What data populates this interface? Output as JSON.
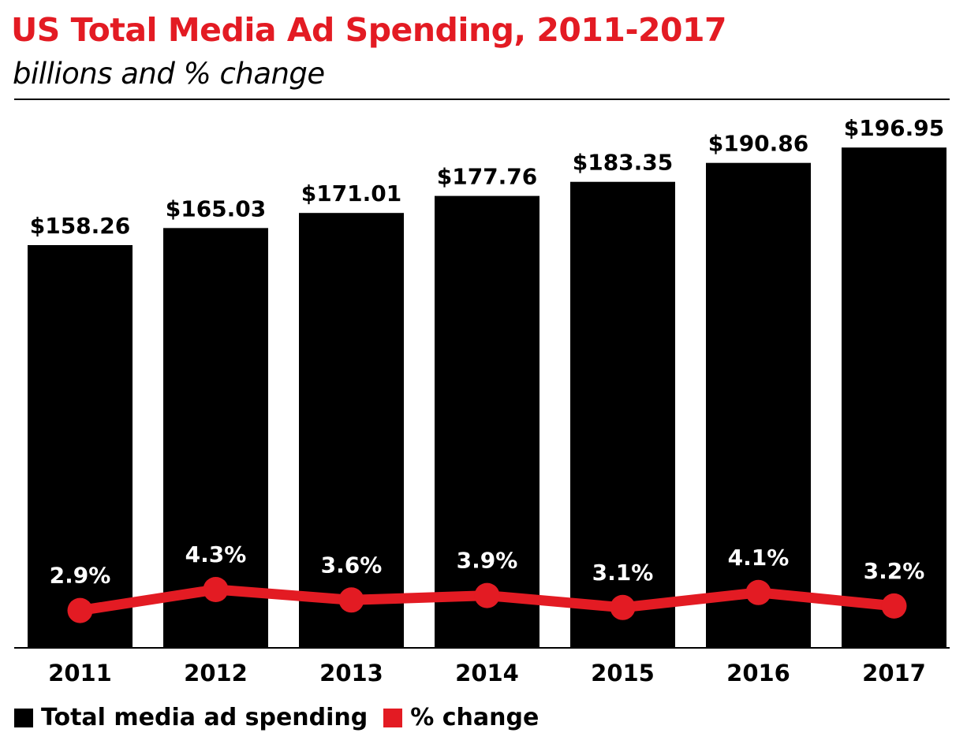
{
  "chart_data": {
    "type": "bar",
    "title": "US Total Media Ad Spending, 2011-2017",
    "subtitle": "billions and % change",
    "categories": [
      "2011",
      "2012",
      "2013",
      "2014",
      "2015",
      "2016",
      "2017"
    ],
    "series": [
      {
        "name": "Total media ad spending",
        "type": "bar",
        "values": [
          158.26,
          165.03,
          171.01,
          177.76,
          183.35,
          190.86,
          196.95
        ],
        "labels": [
          "$158.26",
          "$165.03",
          "$171.01",
          "$177.76",
          "$183.35",
          "$190.86",
          "$196.95"
        ],
        "color": "#000000"
      },
      {
        "name": "% change",
        "type": "line",
        "values": [
          2.9,
          4.3,
          3.6,
          3.9,
          3.1,
          4.1,
          3.2
        ],
        "labels": [
          "2.9%",
          "4.3%",
          "3.6%",
          "3.9%",
          "3.1%",
          "4.1%",
          "3.2%"
        ],
        "color": "#e31b23"
      }
    ],
    "legend": "bottom-left",
    "grid": false
  }
}
